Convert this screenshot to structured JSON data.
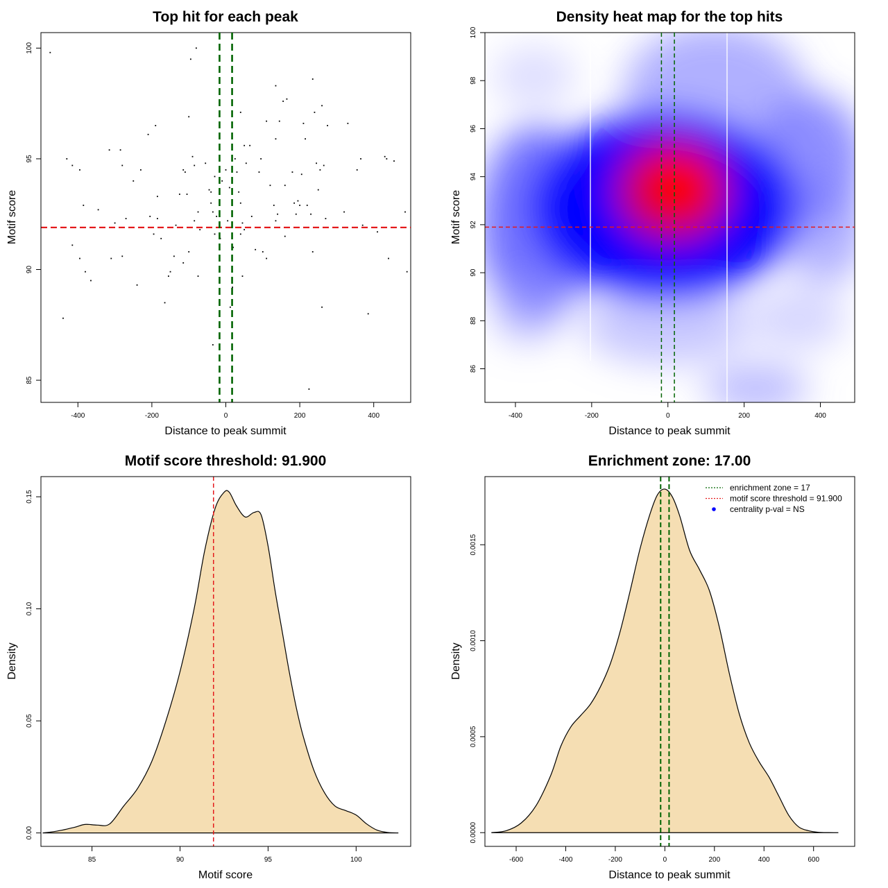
{
  "chart_data": [
    {
      "type": "scatter",
      "title": "Top hit for each peak",
      "xlabel": "Distance to peak summit",
      "ylabel": "Motif score",
      "xlim": [
        -500,
        500
      ],
      "ylim": [
        84,
        100.7
      ],
      "xticks": [
        -400,
        -200,
        0,
        200,
        400
      ],
      "yticks": [
        85,
        90,
        95,
        100
      ],
      "vlines": {
        "x": [
          -17,
          17
        ],
        "color": "#006400"
      },
      "hline": {
        "y": 91.9,
        "color": "#e41a1c"
      },
      "points": [
        [
          -475,
          99.8
        ],
        [
          -430,
          95.0
        ],
        [
          -415,
          94.7
        ],
        [
          -395,
          94.5
        ],
        [
          -385,
          92.9
        ],
        [
          -345,
          92.7
        ],
        [
          -415,
          91.1
        ],
        [
          -395,
          90.5
        ],
        [
          -380,
          89.9
        ],
        [
          -365,
          89.5
        ],
        [
          -440,
          87.8
        ],
        [
          -315,
          95.4
        ],
        [
          -285,
          95.4
        ],
        [
          -280,
          94.7
        ],
        [
          -300,
          92.1
        ],
        [
          -310,
          90.5
        ],
        [
          -270,
          92.3
        ],
        [
          -280,
          90.6
        ],
        [
          -250,
          94.0
        ],
        [
          -240,
          89.3
        ],
        [
          -230,
          94.5
        ],
        [
          -210,
          96.1
        ],
        [
          -190,
          96.5
        ],
        [
          -185,
          93.3
        ],
        [
          -205,
          92.4
        ],
        [
          -195,
          91.6
        ],
        [
          -185,
          92.3
        ],
        [
          -175,
          91.4
        ],
        [
          -165,
          88.5
        ],
        [
          -155,
          89.7
        ],
        [
          -150,
          89.9
        ],
        [
          -140,
          90.6
        ],
        [
          -135,
          92.0
        ],
        [
          -125,
          93.4
        ],
        [
          -115,
          94.5
        ],
        [
          -110,
          94.4
        ],
        [
          -105,
          93.4
        ],
        [
          -115,
          90.3
        ],
        [
          -100,
          90.8
        ],
        [
          -100,
          96.9
        ],
        [
          -95,
          99.5
        ],
        [
          -80,
          100.0
        ],
        [
          -90,
          95.1
        ],
        [
          -85,
          94.7
        ],
        [
          -75,
          92.6
        ],
        [
          -70,
          91.8
        ],
        [
          -85,
          92.2
        ],
        [
          -75,
          89.7
        ],
        [
          -55,
          94.8
        ],
        [
          -45,
          93.6
        ],
        [
          -40,
          93.5
        ],
        [
          -35,
          92.6
        ],
        [
          -30,
          91.6
        ],
        [
          -40,
          93.0
        ],
        [
          -30,
          94.2
        ],
        [
          -25,
          92.4
        ],
        [
          -15,
          91.4
        ],
        [
          -35,
          86.6
        ],
        [
          -10,
          94.0
        ],
        [
          0,
          94.5
        ],
        [
          10,
          93.7
        ],
        [
          5,
          92.2
        ],
        [
          15,
          91.9
        ],
        [
          20,
          91.0
        ],
        [
          12,
          88.3
        ],
        [
          18,
          89.2
        ],
        [
          25,
          95.0
        ],
        [
          30,
          94.4
        ],
        [
          35,
          93.5
        ],
        [
          40,
          93.0
        ],
        [
          45,
          92.1
        ],
        [
          50,
          91.8
        ],
        [
          40,
          91.6
        ],
        [
          45,
          89.7
        ],
        [
          40,
          97.1
        ],
        [
          50,
          95.6
        ],
        [
          65,
          95.6
        ],
        [
          55,
          94.8
        ],
        [
          70,
          92.4
        ],
        [
          80,
          90.9
        ],
        [
          90,
          94.4
        ],
        [
          95,
          95.0
        ],
        [
          100,
          90.8
        ],
        [
          110,
          90.5
        ],
        [
          110,
          96.7
        ],
        [
          120,
          93.8
        ],
        [
          130,
          92.9
        ],
        [
          135,
          92.2
        ],
        [
          140,
          92.5
        ],
        [
          135,
          95.9
        ],
        [
          135,
          98.3
        ],
        [
          145,
          96.7
        ],
        [
          155,
          97.6
        ],
        [
          165,
          97.7
        ],
        [
          160,
          93.8
        ],
        [
          160,
          91.5
        ],
        [
          180,
          94.4
        ],
        [
          185,
          93.0
        ],
        [
          190,
          92.5
        ],
        [
          195,
          93.1
        ],
        [
          200,
          92.9
        ],
        [
          205,
          94.3
        ],
        [
          210,
          96.6
        ],
        [
          215,
          95.9
        ],
        [
          220,
          92.9
        ],
        [
          230,
          92.5
        ],
        [
          235,
          90.8
        ],
        [
          240,
          97.1
        ],
        [
          245,
          94.8
        ],
        [
          250,
          93.6
        ],
        [
          255,
          94.5
        ],
        [
          260,
          97.4
        ],
        [
          265,
          94.7
        ],
        [
          270,
          92.3
        ],
        [
          275,
          96.5
        ],
        [
          235,
          98.6
        ],
        [
          260,
          88.3
        ],
        [
          320,
          92.6
        ],
        [
          330,
          96.6
        ],
        [
          355,
          94.5
        ],
        [
          365,
          95.0
        ],
        [
          370,
          92.0
        ],
        [
          385,
          88.0
        ],
        [
          410,
          91.7
        ],
        [
          430,
          95.1
        ],
        [
          435,
          95.0
        ],
        [
          440,
          90.5
        ],
        [
          455,
          94.9
        ],
        [
          485,
          92.6
        ],
        [
          490,
          89.9
        ],
        [
          225,
          84.6
        ]
      ]
    },
    {
      "type": "heatmap",
      "title": "Density heat map for the top hits",
      "xlabel": "Distance to peak summit",
      "ylabel": "Motif score",
      "xlim": [
        -480,
        490
      ],
      "ylim": [
        84.6,
        100
      ],
      "xticks": [
        -400,
        -200,
        0,
        200,
        400
      ],
      "yticks": [
        86,
        88,
        90,
        92,
        94,
        96,
        98,
        100
      ],
      "vlines": {
        "x": [
          -17,
          17
        ],
        "color": "#006400"
      },
      "hline": {
        "y": 91.9,
        "color": "#e41a1c"
      },
      "colors": [
        "#ffffff",
        "#0000ff",
        "#ff0000"
      ]
    },
    {
      "type": "area",
      "title": "Motif score threshold: 91.900",
      "xlabel": "Motif score",
      "ylabel": "Density",
      "xlim": [
        82.1,
        103.1
      ],
      "ylim": [
        -0.006,
        0.159
      ],
      "xticks": [
        85,
        90,
        95,
        100
      ],
      "yticks": [
        0.0,
        0.05,
        0.1,
        0.15
      ],
      "ytick_labels": [
        "0.00",
        "0.05",
        "0.10",
        "0.15"
      ],
      "vline": {
        "x": 91.9,
        "color": "#e41a1c"
      },
      "fill": "#f5deb3",
      "x": [
        82.2,
        83.0,
        84.0,
        84.6,
        85.3,
        86.0,
        86.8,
        87.6,
        88.4,
        89.2,
        90.0,
        90.8,
        91.4,
        92.0,
        92.5,
        92.8,
        93.2,
        93.7,
        94.2,
        94.6,
        95.0,
        95.4,
        95.8,
        96.2,
        96.6,
        97.0,
        97.6,
        98.2,
        98.8,
        99.4,
        100.0,
        100.6,
        101.2,
        101.8,
        102.4
      ],
      "values": [
        0.0,
        0.0008,
        0.0025,
        0.0038,
        0.0035,
        0.004,
        0.012,
        0.02,
        0.032,
        0.05,
        0.072,
        0.1,
        0.126,
        0.145,
        0.152,
        0.152,
        0.146,
        0.141,
        0.143,
        0.142,
        0.128,
        0.108,
        0.09,
        0.072,
        0.056,
        0.043,
        0.028,
        0.018,
        0.012,
        0.01,
        0.008,
        0.004,
        0.0012,
        0.0002,
        0.0
      ]
    },
    {
      "type": "area",
      "title": "Enrichment zone: 17.00",
      "xlabel": "Distance to peak summit",
      "ylabel": "Density",
      "xlim": [
        -726,
        766
      ],
      "ylim": [
        -7.15e-05,
        0.001855
      ],
      "xticks": [
        -600,
        -400,
        -200,
        0,
        200,
        400,
        600
      ],
      "yticks": [
        0.0,
        0.0005,
        0.001,
        0.0015
      ],
      "ytick_labels": [
        "0.0000",
        "0.0005",
        "0.0010",
        "0.0015"
      ],
      "vlines": {
        "x": [
          -17,
          17
        ],
        "color": "#006400"
      },
      "fill": "#f5deb3",
      "x": [
        -700,
        -640,
        -580,
        -520,
        -460,
        -420,
        -380,
        -340,
        -300,
        -260,
        -220,
        -180,
        -140,
        -100,
        -60,
        -30,
        0,
        30,
        60,
        100,
        140,
        180,
        220,
        260,
        300,
        340,
        380,
        420,
        460,
        500,
        540,
        580,
        620,
        660,
        700
      ],
      "values": [
        0.0,
        1e-05,
        5e-05,
        0.00014,
        0.0003,
        0.00045,
        0.00055,
        0.00061,
        0.00067,
        0.00076,
        0.00088,
        0.00105,
        0.00126,
        0.00148,
        0.00166,
        0.00176,
        0.00179,
        0.00175,
        0.00165,
        0.00147,
        0.00137,
        0.00126,
        0.00107,
        0.00083,
        0.00062,
        0.00047,
        0.00037,
        0.00029,
        0.00019,
        9e-05,
        3e-05,
        1e-05,
        2e-06,
        3e-07,
        0.0
      ],
      "legend": {
        "position": "top-right",
        "entries": [
          {
            "label": "enrichment zone = 17",
            "color": "#006400",
            "kind": "line"
          },
          {
            "label": "motif score threshold = 91.900",
            "color": "#e41a1c",
            "kind": "line"
          },
          {
            "label": "centrality p-val = NS",
            "color": "#0000ff",
            "kind": "dot"
          }
        ]
      }
    }
  ]
}
